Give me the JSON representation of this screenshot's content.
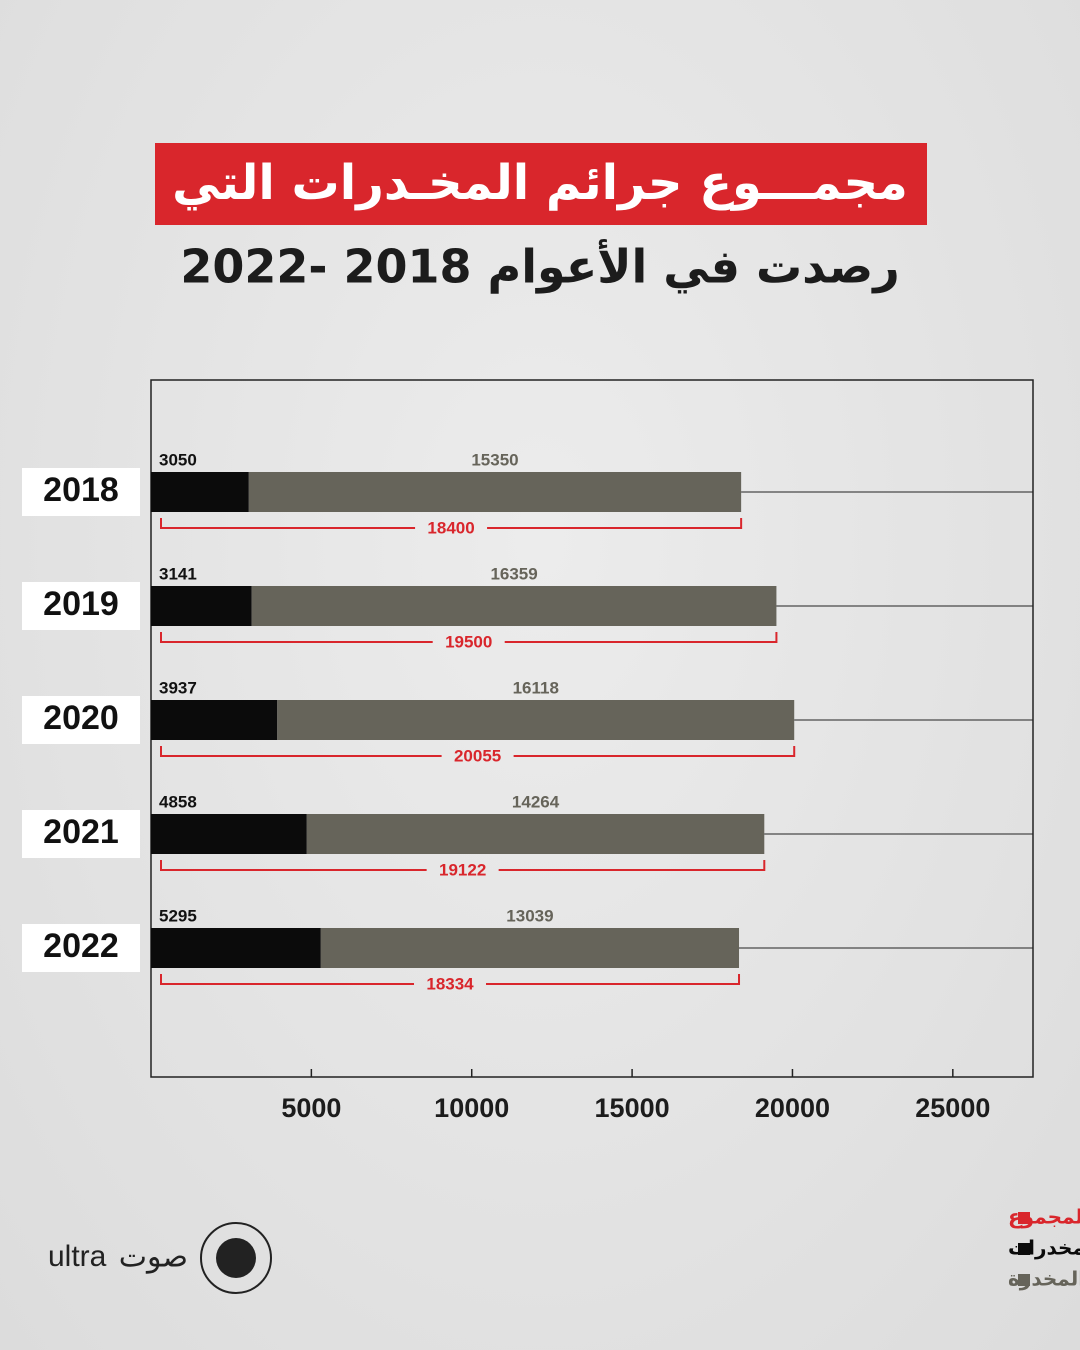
{
  "chart_data": {
    "type": "stacked-barh",
    "title": "مجمـــوع جرائم المخـدرات التي",
    "subtitle": "رصدت في الأعوام 2018 -2022",
    "categories": [
      "2018",
      "2019",
      "2020",
      "2021",
      "2022"
    ],
    "series": [
      {
        "name": "الاتجار بالمخدرات",
        "color": "#0b0b0b",
        "values": [
          3050,
          3141,
          3937,
          4858,
          5295
        ]
      },
      {
        "name": "حيازة وتعاطي المواد المخدرة",
        "color": "#66645a",
        "values": [
          15350,
          16359,
          16118,
          14264,
          13039
        ]
      }
    ],
    "total": {
      "name": "المجموع",
      "color": "#d9262c",
      "values": [
        18400,
        19500,
        20055,
        19122,
        18334
      ]
    },
    "xlim": [
      0,
      27500
    ],
    "xticks": [
      5000,
      10000,
      15000,
      20000,
      25000
    ],
    "brand": [
      "صوت",
      "ultra"
    ]
  }
}
